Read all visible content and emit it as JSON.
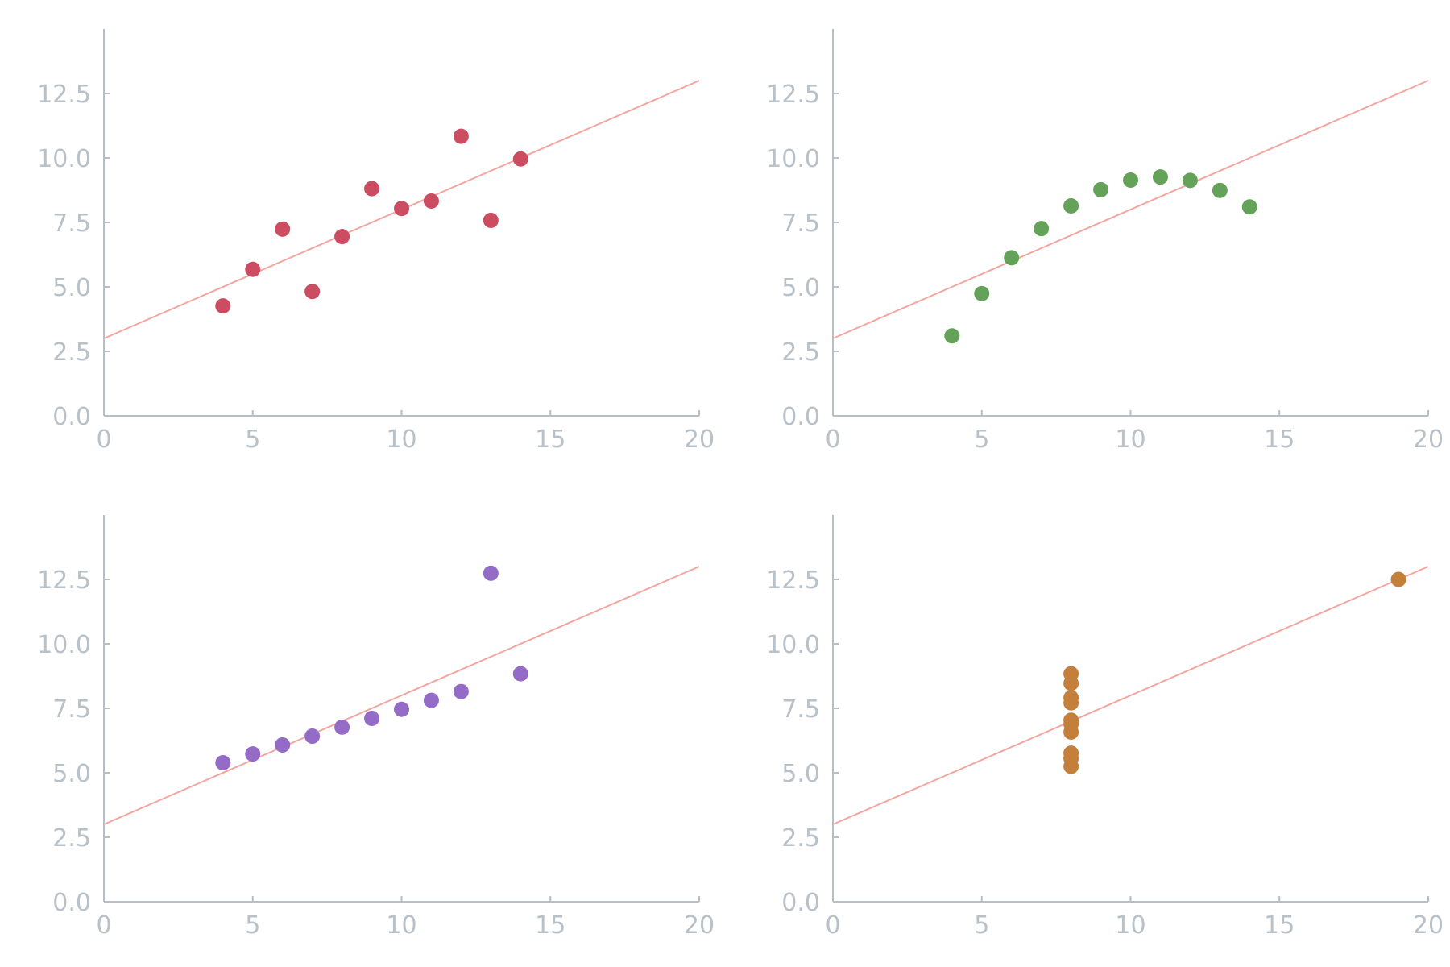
{
  "chart_data": [
    {
      "type": "scatter",
      "title": "",
      "xlabel": "",
      "ylabel": "",
      "xlim": [
        0,
        20
      ],
      "ylim": [
        0,
        15
      ],
      "xticks": [
        0,
        5,
        10,
        15,
        20
      ],
      "yticks": [
        0.0,
        2.5,
        5.0,
        7.5,
        10.0,
        12.5
      ],
      "xtick_labels": [
        "0",
        "5",
        "10",
        "15",
        "20"
      ],
      "ytick_labels": [
        "0.0",
        "2.5",
        "5.0",
        "7.5",
        "10.0",
        "12.5"
      ],
      "grid": false,
      "fit_line": {
        "slope": 0.5,
        "intercept": 3.0,
        "color": "#f4a6a0"
      },
      "series": [
        {
          "color": "#cc4c62",
          "x": [
            10,
            8,
            13,
            9,
            11,
            14,
            6,
            4,
            12,
            7,
            5
          ],
          "y": [
            8.04,
            6.95,
            7.58,
            8.81,
            8.33,
            9.96,
            7.24,
            4.26,
            10.84,
            4.82,
            5.68
          ]
        }
      ]
    },
    {
      "type": "scatter",
      "title": "",
      "xlabel": "",
      "ylabel": "",
      "xlim": [
        0,
        20
      ],
      "ylim": [
        0,
        15
      ],
      "xticks": [
        0,
        5,
        10,
        15,
        20
      ],
      "yticks": [
        0.0,
        2.5,
        5.0,
        7.5,
        10.0,
        12.5
      ],
      "xtick_labels": [
        "0",
        "5",
        "10",
        "15",
        "20"
      ],
      "ytick_labels": [
        "0.0",
        "2.5",
        "5.0",
        "7.5",
        "10.0",
        "12.5"
      ],
      "grid": false,
      "fit_line": {
        "slope": 0.5,
        "intercept": 3.0,
        "color": "#f4a6a0"
      },
      "series": [
        {
          "color": "#64a25a",
          "x": [
            10,
            8,
            13,
            9,
            11,
            14,
            6,
            4,
            12,
            7,
            5
          ],
          "y": [
            9.14,
            8.14,
            8.74,
            8.77,
            9.26,
            8.1,
            6.13,
            3.1,
            9.13,
            7.26,
            4.74
          ]
        }
      ]
    },
    {
      "type": "scatter",
      "title": "",
      "xlabel": "",
      "ylabel": "",
      "xlim": [
        0,
        20
      ],
      "ylim": [
        0,
        15
      ],
      "xticks": [
        0,
        5,
        10,
        15,
        20
      ],
      "yticks": [
        0.0,
        2.5,
        5.0,
        7.5,
        10.0,
        12.5
      ],
      "xtick_labels": [
        "0",
        "5",
        "10",
        "15",
        "20"
      ],
      "ytick_labels": [
        "0.0",
        "2.5",
        "5.0",
        "7.5",
        "10.0",
        "12.5"
      ],
      "grid": false,
      "fit_line": {
        "slope": 0.5,
        "intercept": 3.0,
        "color": "#f4a6a0"
      },
      "series": [
        {
          "color": "#946cc8",
          "x": [
            10,
            8,
            13,
            9,
            11,
            14,
            6,
            4,
            12,
            7,
            5
          ],
          "y": [
            7.46,
            6.77,
            12.74,
            7.11,
            7.81,
            8.84,
            6.08,
            5.39,
            8.15,
            6.42,
            5.73
          ]
        }
      ]
    },
    {
      "type": "scatter",
      "title": "",
      "xlabel": "",
      "ylabel": "",
      "xlim": [
        0,
        20
      ],
      "ylim": [
        0,
        15
      ],
      "xticks": [
        0,
        5,
        10,
        15,
        20
      ],
      "yticks": [
        0.0,
        2.5,
        5.0,
        7.5,
        10.0,
        12.5
      ],
      "xtick_labels": [
        "0",
        "5",
        "10",
        "15",
        "20"
      ],
      "ytick_labels": [
        "0.0",
        "2.5",
        "5.0",
        "7.5",
        "10.0",
        "12.5"
      ],
      "grid": false,
      "fit_line": {
        "slope": 0.5,
        "intercept": 3.0,
        "color": "#f4a6a0"
      },
      "series": [
        {
          "color": "#c4803a",
          "x": [
            8,
            8,
            8,
            8,
            8,
            8,
            8,
            19,
            8,
            8,
            8
          ],
          "y": [
            6.58,
            5.76,
            7.71,
            8.84,
            8.47,
            7.04,
            5.25,
            12.5,
            5.56,
            7.91,
            6.89
          ]
        }
      ]
    }
  ]
}
